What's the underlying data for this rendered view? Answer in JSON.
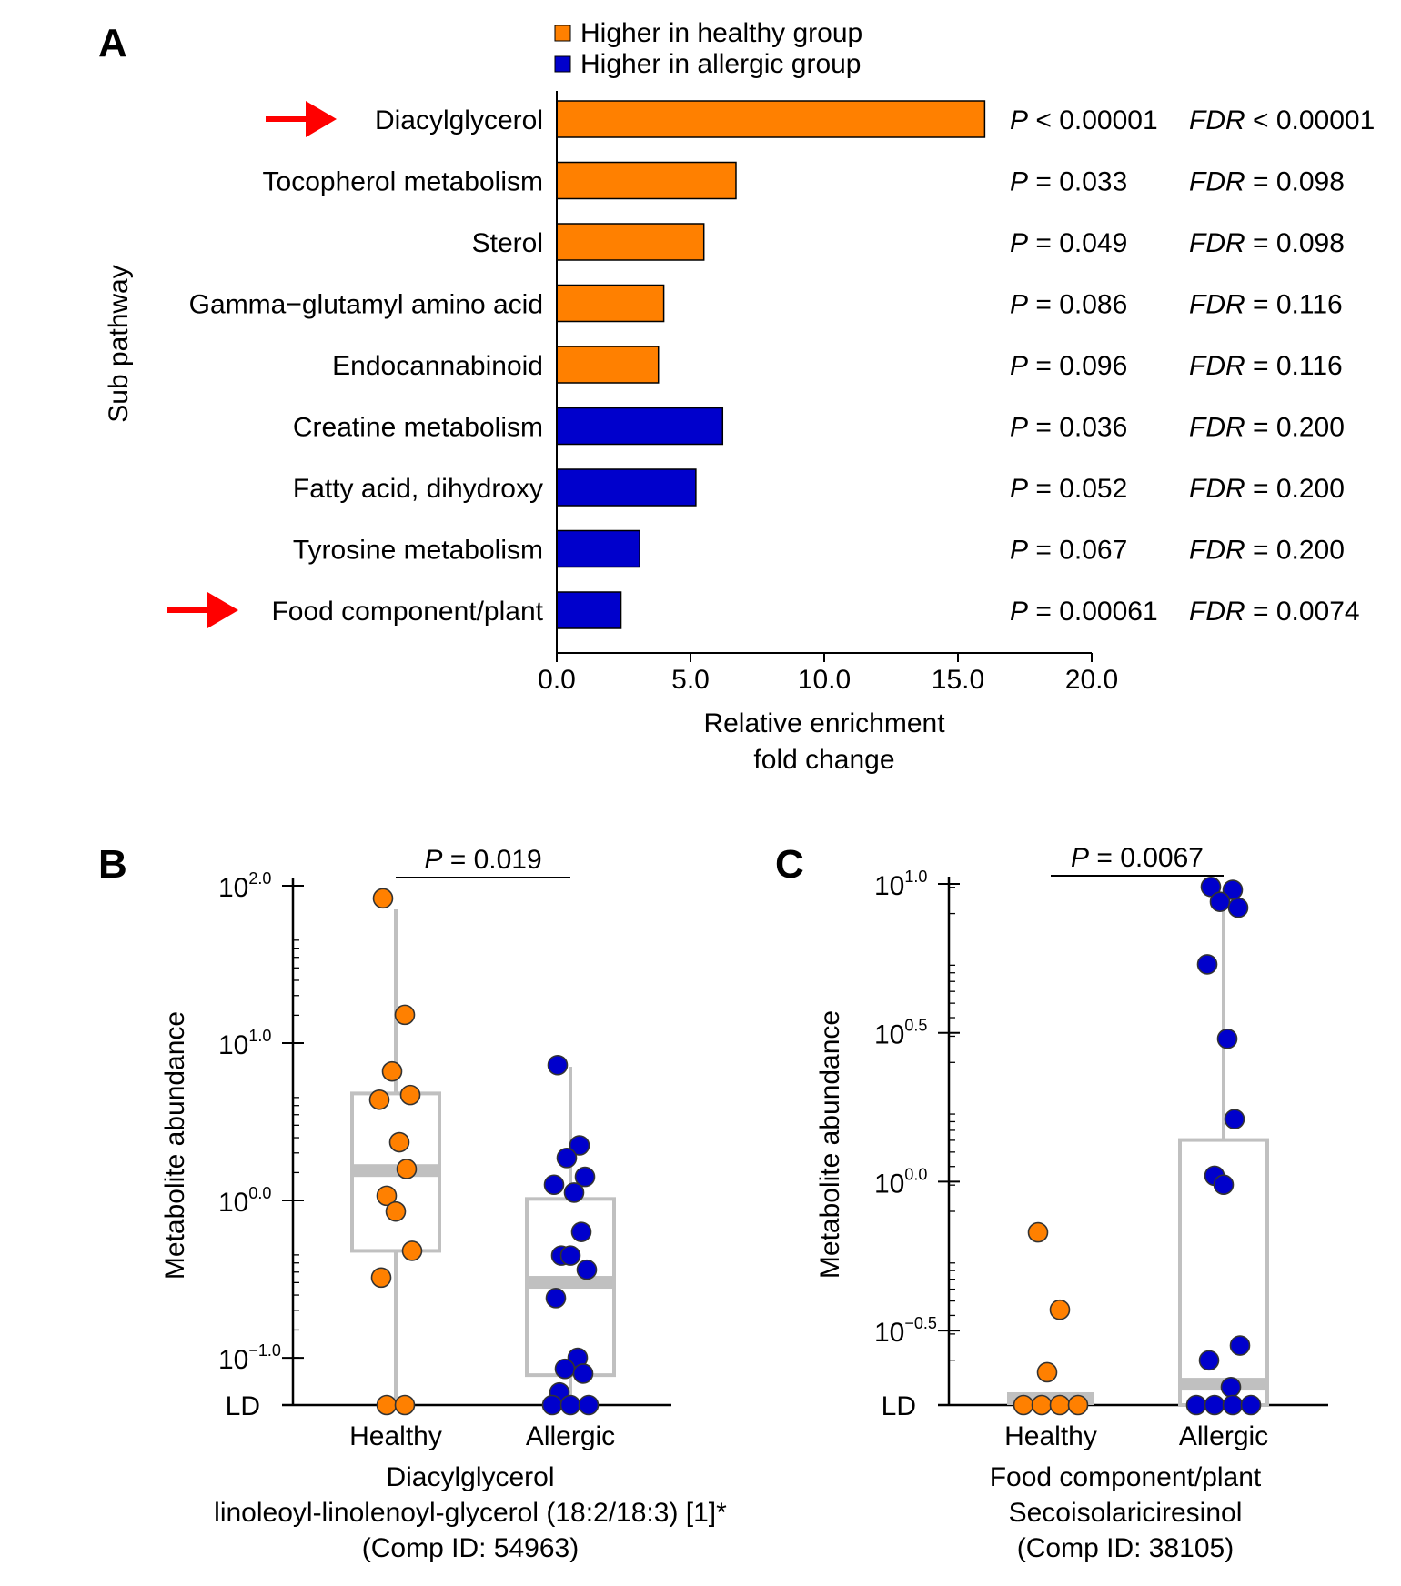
{
  "chart_data": [
    {
      "panel": "A",
      "type": "bar",
      "orientation": "horizontal",
      "ylabel": "Sub pathway",
      "xlabel_lines": [
        "Relative enrichment",
        "fold change"
      ],
      "xlim": [
        0,
        20
      ],
      "xticks": [
        "0.0",
        "5.0",
        "10.0",
        "15.0",
        "20.0"
      ],
      "legend": [
        {
          "label": "Higher in healthy group",
          "color": "#FF8000"
        },
        {
          "label": "Higher in allergic group",
          "color": "#0000CC"
        }
      ],
      "legend_placement": "top",
      "categories": [
        "Diacylglycerol",
        "Tocopherol metabolism",
        "Sterol",
        "Gamma−glutamyl amino acid",
        "Endocannabinoid",
        "Creatine metabolism",
        "Fatty acid, dihydroxy",
        "Tyrosine metabolism",
        "Food component/plant"
      ],
      "values": [
        16.0,
        6.7,
        5.5,
        4.0,
        3.8,
        6.2,
        5.2,
        3.1,
        2.4
      ],
      "groups": [
        "healthy",
        "healthy",
        "healthy",
        "healthy",
        "healthy",
        "allergic",
        "allergic",
        "allergic",
        "allergic"
      ],
      "p_rel": [
        "<",
        "=",
        "=",
        "=",
        "=",
        "=",
        "=",
        "=",
        "="
      ],
      "p_values": [
        "0.00001",
        "0.033",
        "0.049",
        "0.086",
        "0.096",
        "0.036",
        "0.052",
        "0.067",
        "0.00061"
      ],
      "fdr_rel": [
        "<",
        "=",
        "=",
        "=",
        "=",
        "=",
        "=",
        "=",
        "="
      ],
      "fdr_values": [
        "0.00001",
        "0.098",
        "0.098",
        "0.116",
        "0.116",
        "0.200",
        "0.200",
        "0.200",
        "0.0074"
      ],
      "p_symbol": "P",
      "fdr_symbol": "FDR",
      "highlighted": [
        "Diacylglycerol",
        "Food component/plant"
      ],
      "arrow_color": "#FF0000"
    },
    {
      "panel": "B",
      "type": "scatter",
      "subtype": "box-dot",
      "ylabel": "Metabolite abundance",
      "yscale": "log10",
      "ylim_log10": [
        -1.3,
        2.0
      ],
      "yticks": [
        {
          "base": "10",
          "exp": "2.0"
        },
        {
          "base": "10",
          "exp": "1.0"
        },
        {
          "base": "10",
          "exp": "0.0"
        },
        {
          "base": "10",
          "exp": "−1.0"
        }
      ],
      "ld_label": "LD",
      "categories": [
        "Healthy",
        "Allergic"
      ],
      "caption_lines": [
        "Diacylglycerol",
        "linoleoyl-linolenoyl-glycerol (18:2/18:3) [1]*",
        "(Comp ID: 54963)"
      ],
      "p_symbol": "P",
      "p_value": "= 0.019",
      "series": [
        {
          "name": "Healthy",
          "color": "#FF8000",
          "box_log10": {
            "q1": -0.32,
            "median": 0.19,
            "q3": 0.68,
            "min": -1.3,
            "max": 1.85
          },
          "points_log10": [
            1.92,
            1.18,
            0.82,
            0.67,
            0.64,
            0.37,
            0.2,
            0.03,
            -0.07,
            -0.32,
            -0.49,
            "LD",
            "LD"
          ]
        },
        {
          "name": "Allergic",
          "color": "#0000CC",
          "box_log10": {
            "q1": -1.11,
            "median": -0.52,
            "q3": 0.01,
            "min": -1.3,
            "max": 0.85
          },
          "points_log10": [
            0.86,
            0.35,
            0.27,
            0.15,
            0.1,
            0.05,
            -0.2,
            -0.35,
            -0.35,
            -0.44,
            -0.62,
            -1.0,
            -1.07,
            -1.1,
            -1.22,
            "LD",
            "LD",
            "LD"
          ]
        }
      ]
    },
    {
      "panel": "C",
      "type": "scatter",
      "subtype": "box-dot",
      "ylabel": "Metabolite abundance",
      "yscale": "log10",
      "ylim_log10": [
        -0.75,
        1.0
      ],
      "yticks": [
        {
          "base": "10",
          "exp": "1.0"
        },
        {
          "base": "10",
          "exp": "0.5"
        },
        {
          "base": "10",
          "exp": "0.0"
        },
        {
          "base": "10",
          "exp": "−0.5"
        }
      ],
      "ld_label": "LD",
      "categories": [
        "Healthy",
        "Allergic"
      ],
      "caption_lines": [
        "Food component/plant",
        "Secoisolariciresinol",
        "(Comp ID: 38105)"
      ],
      "p_symbol": "P",
      "p_value": "= 0.0067",
      "series": [
        {
          "name": "Healthy",
          "color": "#FF8000",
          "box_log10": {
            "q1": -0.75,
            "median": -0.75,
            "q3": -0.75,
            "min": -0.75,
            "max": -0.75
          },
          "points_log10": [
            -0.17,
            -0.43,
            -0.64,
            "LD",
            "LD",
            "LD",
            "LD"
          ]
        },
        {
          "name": "Allergic",
          "color": "#0000CC",
          "box_log10": {
            "q1": -0.75,
            "median": -0.68,
            "q3": 0.14,
            "min": -0.75,
            "max": 0.97
          },
          "points_log10": [
            0.99,
            0.98,
            0.94,
            0.92,
            0.73,
            0.48,
            0.21,
            0.02,
            -0.01,
            -0.55,
            -0.6,
            -0.69,
            "LD",
            "LD",
            "LD",
            "LD"
          ]
        }
      ]
    }
  ]
}
